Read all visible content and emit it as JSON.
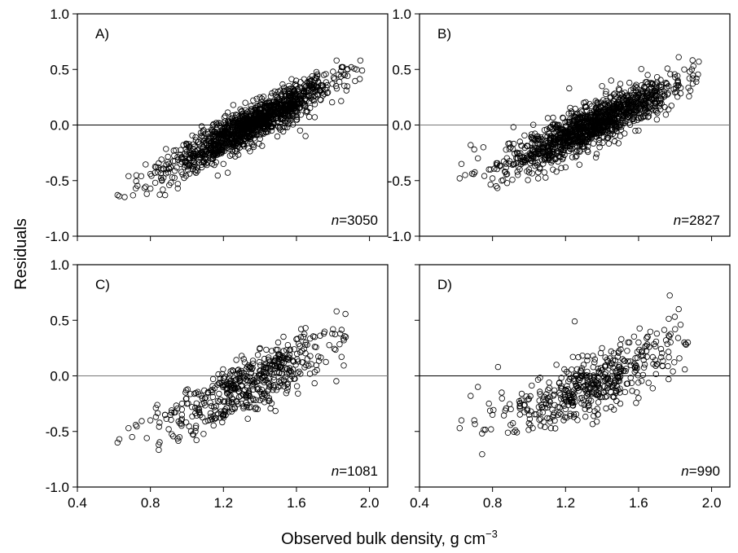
{
  "figure": {
    "ylabel": "Residuals",
    "xlabel_main": "Observed bulk density, g cm",
    "xlabel_sup": "−3"
  },
  "chart_data": [
    {
      "type": "scatter",
      "panel": "A)",
      "n_label_prefix": "n",
      "n_label_value": "=3050",
      "xlim": [
        0.4,
        2.1
      ],
      "ylim": [
        -1.0,
        1.0
      ],
      "xticks": [
        "0.4",
        "0.8",
        "1.2",
        "1.6",
        "2.0"
      ],
      "yticks": [
        "1.0",
        "0.5",
        "0.0",
        "-0.5",
        "-1.0"
      ],
      "zero_line": true,
      "trend": {
        "slope": 0.85,
        "x0": 1.35,
        "spread": 0.08
      },
      "x_range": [
        0.62,
        1.97
      ],
      "points": [
        [
          0.62,
          -0.63
        ],
        [
          0.63,
          -0.64
        ],
        [
          0.68,
          -0.46
        ],
        [
          0.72,
          -0.57
        ],
        [
          0.75,
          -0.46
        ],
        [
          0.78,
          -0.62
        ],
        [
          0.8,
          -0.44
        ],
        [
          0.83,
          -0.38
        ],
        [
          0.87,
          -0.39
        ],
        [
          0.9,
          -0.35
        ],
        [
          0.92,
          -0.47
        ],
        [
          0.95,
          -0.53
        ],
        [
          0.95,
          -0.57
        ],
        [
          1.0,
          -0.24
        ],
        [
          1.02,
          -0.36
        ],
        [
          1.05,
          -0.43
        ],
        [
          1.1,
          -0.3
        ],
        [
          1.15,
          -0.36
        ],
        [
          1.2,
          -0.35
        ],
        [
          1.25,
          -0.1
        ],
        [
          1.3,
          0.12
        ],
        [
          1.32,
          0.2
        ],
        [
          1.4,
          0.25
        ],
        [
          1.5,
          0.3
        ],
        [
          1.55,
          0.32
        ],
        [
          1.6,
          0.35
        ],
        [
          1.65,
          -0.1
        ],
        [
          1.7,
          0.4
        ],
        [
          1.75,
          0.45
        ],
        [
          1.8,
          0.48
        ],
        [
          1.82,
          0.58
        ],
        [
          1.85,
          0.52
        ],
        [
          1.88,
          0.5
        ],
        [
          1.9,
          0.52
        ],
        [
          1.93,
          0.5
        ],
        [
          1.95,
          0.58
        ],
        [
          1.96,
          0.49
        ],
        [
          1.7,
          0.07
        ],
        [
          1.62,
          -0.05
        ],
        [
          1.55,
          -0.02
        ],
        [
          1.6,
          0.05
        ]
      ]
    },
    {
      "type": "scatter",
      "panel": "B)",
      "n_label_prefix": "n",
      "n_label_value": "=2827",
      "xlim": [
        0.4,
        2.1
      ],
      "ylim": [
        -1.0,
        1.0
      ],
      "xticks": [
        "0.4",
        "0.8",
        "1.2",
        "1.6",
        "2.0"
      ],
      "yticks": [
        "1.0",
        "0.5",
        "0.0",
        "-0.5",
        "-1.0"
      ],
      "zero_line": true,
      "trend": {
        "slope": 0.78,
        "x0": 1.35,
        "spread": 0.09
      },
      "x_range": [
        0.62,
        1.95
      ],
      "points": [
        [
          0.62,
          -0.48
        ],
        [
          0.63,
          -0.35
        ],
        [
          0.65,
          -0.45
        ],
        [
          0.68,
          -0.18
        ],
        [
          0.7,
          -0.22
        ],
        [
          0.72,
          -0.3
        ],
        [
          0.75,
          -0.2
        ],
        [
          0.78,
          -0.4
        ],
        [
          0.8,
          -0.48
        ],
        [
          0.82,
          -0.55
        ],
        [
          0.85,
          -0.5
        ],
        [
          0.88,
          -0.44
        ],
        [
          0.9,
          -0.2
        ],
        [
          0.92,
          -0.35
        ],
        [
          0.95,
          -0.15
        ],
        [
          1.0,
          -0.4
        ],
        [
          1.05,
          -0.48
        ],
        [
          1.1,
          -0.28
        ],
        [
          1.15,
          -0.42
        ],
        [
          1.2,
          -0.38
        ],
        [
          1.22,
          0.33
        ],
        [
          1.3,
          0.2
        ],
        [
          1.4,
          0.35
        ],
        [
          1.45,
          0.4
        ],
        [
          1.5,
          0.37
        ],
        [
          1.55,
          0.38
        ],
        [
          1.6,
          0.2
        ],
        [
          1.65,
          0.45
        ],
        [
          1.7,
          0.3
        ],
        [
          1.75,
          0.38
        ],
        [
          1.8,
          0.43
        ],
        [
          1.82,
          0.61
        ],
        [
          1.85,
          0.5
        ],
        [
          1.88,
          0.48
        ],
        [
          1.9,
          0.53
        ],
        [
          1.93,
          0.57
        ],
        [
          1.6,
          -0.05
        ],
        [
          1.7,
          0.05
        ],
        [
          1.5,
          -0.1
        ]
      ]
    },
    {
      "type": "scatter",
      "panel": "C)",
      "n_label_prefix": "n",
      "n_label_value": "=1081",
      "xlim": [
        0.4,
        2.1
      ],
      "ylim": [
        -1.0,
        1.0
      ],
      "xticks": [
        "0.4",
        "0.8",
        "1.2",
        "1.6",
        "2.0"
      ],
      "yticks": [
        "1.0",
        "0.5",
        "0.0",
        "-0.5",
        "-1.0"
      ],
      "zero_line": true,
      "trend": {
        "slope": 0.75,
        "x0": 1.35,
        "spread": 0.08
      },
      "x_range": [
        0.62,
        1.87
      ],
      "points": [
        [
          0.62,
          -0.6
        ],
        [
          0.63,
          -0.57
        ],
        [
          0.68,
          -0.47
        ],
        [
          0.7,
          -0.55
        ],
        [
          0.72,
          -0.44
        ],
        [
          0.78,
          -0.56
        ],
        [
          0.8,
          -0.4
        ],
        [
          0.83,
          -0.37
        ],
        [
          0.88,
          -0.35
        ],
        [
          0.9,
          -0.48
        ],
        [
          0.93,
          -0.33
        ],
        [
          0.97,
          -0.43
        ],
        [
          1.0,
          -0.25
        ],
        [
          1.05,
          -0.45
        ],
        [
          1.1,
          -0.41
        ],
        [
          1.15,
          -0.39
        ],
        [
          1.2,
          -0.36
        ],
        [
          1.25,
          -0.3
        ],
        [
          1.3,
          -0.25
        ],
        [
          1.35,
          -0.28
        ],
        [
          1.4,
          -0.22
        ],
        [
          1.45,
          -0.2
        ],
        [
          1.5,
          -0.1
        ],
        [
          1.55,
          -0.13
        ],
        [
          1.6,
          0.33
        ],
        [
          1.65,
          0.43
        ],
        [
          1.7,
          0.35
        ],
        [
          1.75,
          0.38
        ],
        [
          1.8,
          0.42
        ],
        [
          1.82,
          0.58
        ],
        [
          1.84,
          0.38
        ],
        [
          1.86,
          0.32
        ],
        [
          1.87,
          0.35
        ],
        [
          1.4,
          0.25
        ],
        [
          1.5,
          0.3
        ],
        [
          1.3,
          0.18
        ]
      ]
    },
    {
      "type": "scatter",
      "panel": "D)",
      "n_label_prefix": "n",
      "n_label_value": "=990",
      "xlim": [
        0.4,
        2.1
      ],
      "ylim": [
        -1.0,
        1.0
      ],
      "xticks": [
        "0.4",
        "0.8",
        "1.2",
        "1.6",
        "2.0"
      ],
      "yticks": [],
      "zero_line": true,
      "trend": {
        "slope": 0.7,
        "x0": 1.35,
        "spread": 0.1
      },
      "x_range": [
        0.62,
        1.87
      ],
      "points": [
        [
          0.62,
          -0.47
        ],
        [
          0.63,
          -0.4
        ],
        [
          0.68,
          -0.18
        ],
        [
          0.7,
          -0.4
        ],
        [
          0.72,
          -0.1
        ],
        [
          0.78,
          -0.25
        ],
        [
          0.8,
          -0.35
        ],
        [
          0.83,
          0.08
        ],
        [
          0.85,
          -0.15
        ],
        [
          0.9,
          -0.3
        ],
        [
          0.95,
          -0.25
        ],
        [
          1.0,
          -0.35
        ],
        [
          1.02,
          -0.47
        ],
        [
          1.1,
          -0.38
        ],
        [
          1.12,
          -0.47
        ],
        [
          1.15,
          0.1
        ],
        [
          1.2,
          -0.3
        ],
        [
          1.25,
          0.49
        ],
        [
          1.3,
          -0.1
        ],
        [
          1.35,
          0.18
        ],
        [
          1.4,
          0.25
        ],
        [
          1.45,
          0.22
        ],
        [
          1.5,
          0.28
        ],
        [
          1.55,
          0.3
        ],
        [
          1.6,
          0.3
        ],
        [
          1.65,
          0.35
        ],
        [
          1.7,
          0.38
        ],
        [
          1.75,
          0.32
        ],
        [
          1.8,
          0.42
        ],
        [
          1.82,
          0.6
        ],
        [
          1.83,
          0.46
        ],
        [
          1.85,
          0.3
        ],
        [
          1.86,
          0.28
        ],
        [
          1.87,
          0.3
        ],
        [
          1.6,
          -0.2
        ],
        [
          1.5,
          -0.25
        ],
        [
          1.45,
          -0.28
        ]
      ]
    }
  ]
}
